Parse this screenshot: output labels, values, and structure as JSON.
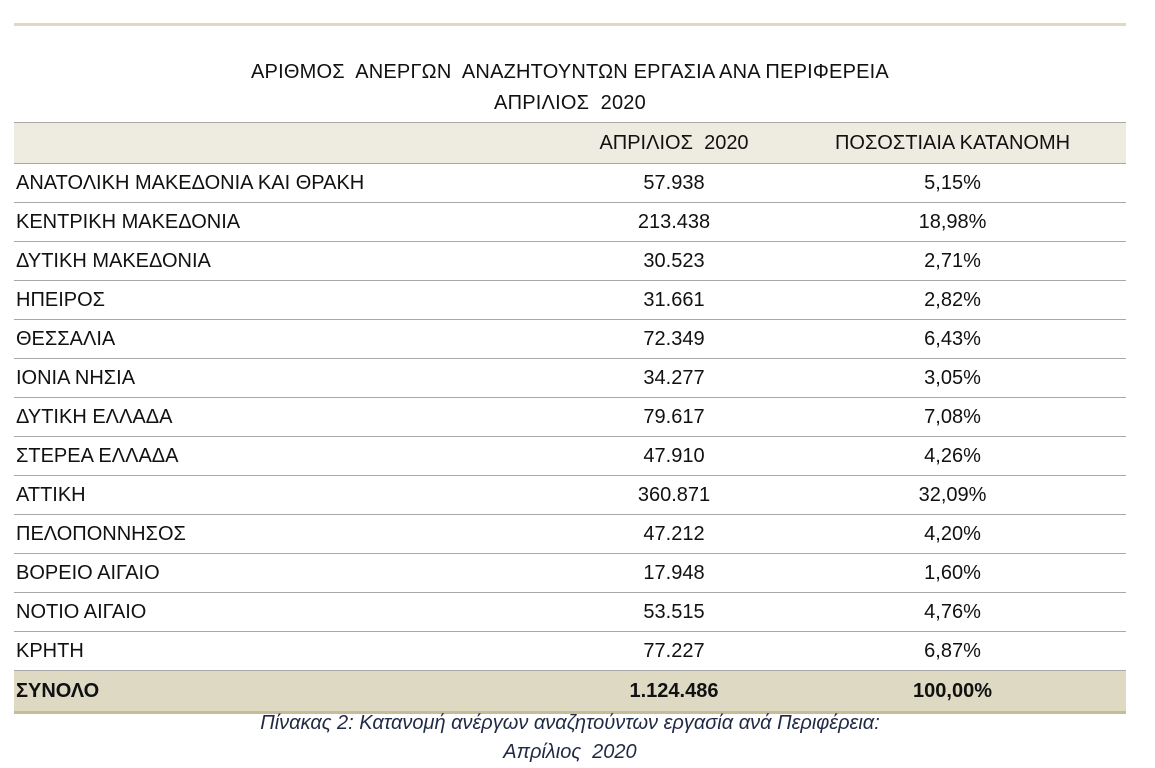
{
  "title": {
    "line1": "ΑΡΙΘΜΟΣ  ΑΝΕΡΓΩΝ  ΑΝΑΖΗΤΟΥΝΤΩΝ ΕΡΓΑΣΙΑ ΑΝΑ ΠΕΡΙΦΕΡΕΙΑ",
    "line2": "ΑΠΡΙΛΙΟΣ  2020"
  },
  "table": {
    "headers": [
      "",
      "ΑΠΡΙΛΙΟΣ  2020",
      "ΠΟΣΟΣΤΙΑΙΑ ΚΑΤΑΝΟΜΗ"
    ],
    "rows": [
      {
        "region": "ΑΝΑΤΟΛΙΚΗ ΜΑΚΕΔΟΝΙΑ ΚΑΙ ΘΡΑΚΗ",
        "count": "57.938",
        "share": "5,15%"
      },
      {
        "region": "ΚΕΝΤΡΙΚΗ ΜΑΚΕΔΟΝΙΑ",
        "count": "213.438",
        "share": "18,98%"
      },
      {
        "region": "ΔΥΤΙΚΗ ΜΑΚΕΔΟΝΙΑ",
        "count": "30.523",
        "share": "2,71%"
      },
      {
        "region": "ΗΠΕΙΡΟΣ",
        "count": "31.661",
        "share": "2,82%"
      },
      {
        "region": "ΘΕΣΣΑΛΙΑ",
        "count": "72.349",
        "share": "6,43%"
      },
      {
        "region": "ΙΟΝΙΑ ΝΗΣΙΑ",
        "count": "34.277",
        "share": "3,05%"
      },
      {
        "region": "ΔΥΤΙΚΗ ΕΛΛΑΔΑ",
        "count": "79.617",
        "share": "7,08%"
      },
      {
        "region": "ΣΤΕΡΕΑ ΕΛΛΑΔΑ",
        "count": "47.910",
        "share": "4,26%"
      },
      {
        "region": "ΑΤΤΙΚΗ",
        "count": "360.871",
        "share": "32,09%"
      },
      {
        "region": "ΠΕΛΟΠΟΝΝΗΣΟΣ",
        "count": "47.212",
        "share": "4,20%"
      },
      {
        "region": "ΒΟΡΕΙΟ ΑΙΓΑΙΟ",
        "count": "17.948",
        "share": "1,60%"
      },
      {
        "region": "ΝΟΤΙΟ ΑΙΓΑΙΟ",
        "count": "53.515",
        "share": "4,76%"
      },
      {
        "region": "ΚΡΗΤΗ",
        "count": "77.227",
        "share": "6,87%"
      }
    ],
    "total": {
      "region": "ΣΥΝΟΛΟ",
      "count": "1.124.486",
      "share": "100,00%"
    }
  },
  "caption": {
    "line1": "Πίνακας 2: Κατανομή ανέργων αναζητούντων εργασία ανά Περιφέρεια:",
    "line2": "Απρίλιος  2020"
  },
  "colors": {
    "header_fill": "#eeece1",
    "total_fill": "#ddd9c3",
    "rule": "#ddd9c3",
    "caption_text": "#1f2a44"
  }
}
